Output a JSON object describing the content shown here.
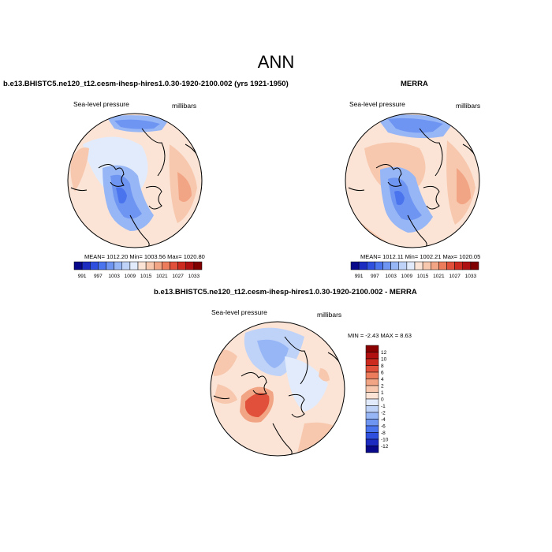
{
  "title": "ANN",
  "panels": [
    {
      "title": "b.e13.BHISTC5.ne120_t12.cesm-ihesp-hires1.0.30-1920-2100.002 (yrs 1921-1950)",
      "left_label": "Sea-level pressure",
      "right_label": "millibars",
      "stats": "MEAN= 1012.20  Min= 1003.56  Max= 1020.80"
    },
    {
      "title": "MERRA",
      "left_label": "Sea-level pressure",
      "right_label": "millibars",
      "stats": "MEAN= 1012.11  Min= 1002.21  Max= 1020.05"
    },
    {
      "title": "b.e13.BHISTC5.ne120_t12.cesm-ihesp-hires1.0.30-1920-2100.002 - MERRA",
      "left_label": "Sea-level pressure",
      "right_label": "millibars",
      "stats": "MIN =  -2.43 MAX =   8.63"
    }
  ],
  "colorbar_abs": {
    "labels": [
      "991",
      "997",
      "1003",
      "1009",
      "1015",
      "1021",
      "1027",
      "1033"
    ],
    "colors": [
      "#08088a",
      "#1c2bc0",
      "#2f50df",
      "#4a73ee",
      "#6f95f3",
      "#97b6f6",
      "#bfd2f8",
      "#e2ebfb",
      "#fbe4d6",
      "#f7c8ae",
      "#f2a585",
      "#ec7c5c",
      "#e1503a",
      "#cc2a1e",
      "#ae0f10",
      "#800000"
    ]
  },
  "colorbar_diff": {
    "labels": [
      "12",
      "10",
      "8",
      "6",
      "4",
      "2",
      "1",
      "0",
      "-1",
      "-2",
      "-4",
      "-6",
      "-8",
      "-10",
      "-12"
    ],
    "colors": [
      "#8a0000",
      "#b01010",
      "#cc2a1e",
      "#e1503a",
      "#ec7c5c",
      "#f2a585",
      "#f7c8ae",
      "#fbe4d6",
      "#e2ebfb",
      "#bfd2f8",
      "#97b6f6",
      "#6f95f3",
      "#4a73ee",
      "#2f50df",
      "#1c2bc0",
      "#08088a"
    ]
  }
}
